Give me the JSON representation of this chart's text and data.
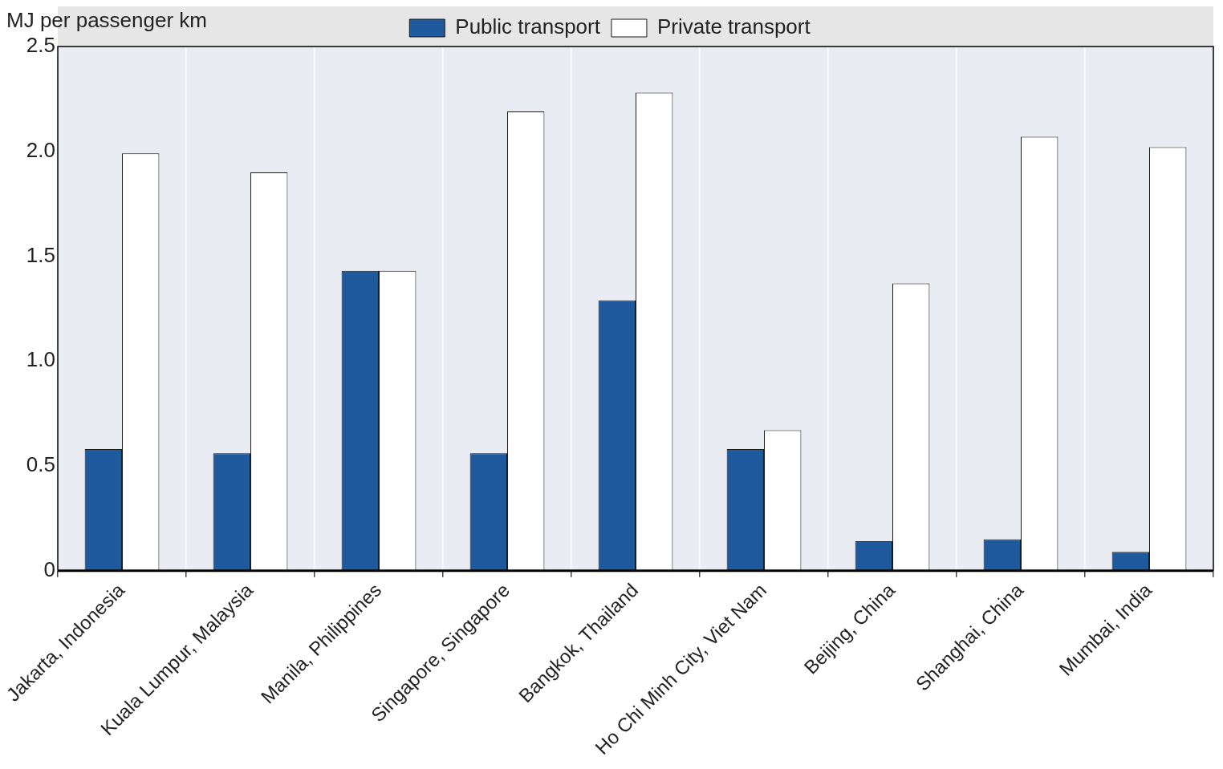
{
  "chart_data": {
    "type": "bar",
    "ylabel": "MJ per passenger km",
    "categories": [
      "Jakarta, Indonesia",
      "Kuala Lumpur, Malaysia",
      "Manila, Philippines",
      "Singapore, Singapore",
      "Bangkok, Thailand",
      "Ho Chi Minh City, Viet Nam",
      "Beijing, China",
      "Shanghai, China",
      "Mumbai, India"
    ],
    "series": [
      {
        "name": "Public transport",
        "color": "#1f5a9e",
        "values": [
          0.58,
          0.56,
          1.43,
          0.56,
          1.29,
          0.58,
          0.14,
          0.15,
          0.09
        ]
      },
      {
        "name": "Private transport",
        "color": "#ffffff",
        "values": [
          1.99,
          1.9,
          1.43,
          2.19,
          2.28,
          0.67,
          1.37,
          2.07,
          2.02
        ]
      }
    ],
    "ylim": [
      0,
      2.5
    ],
    "yticks": [
      0,
      0.5,
      {
        "value": 1,
        "label": "1.0"
      },
      1.5,
      {
        "value": 2,
        "label": "2.0"
      },
      2.5
    ],
    "grid": "x",
    "legend": "top"
  }
}
